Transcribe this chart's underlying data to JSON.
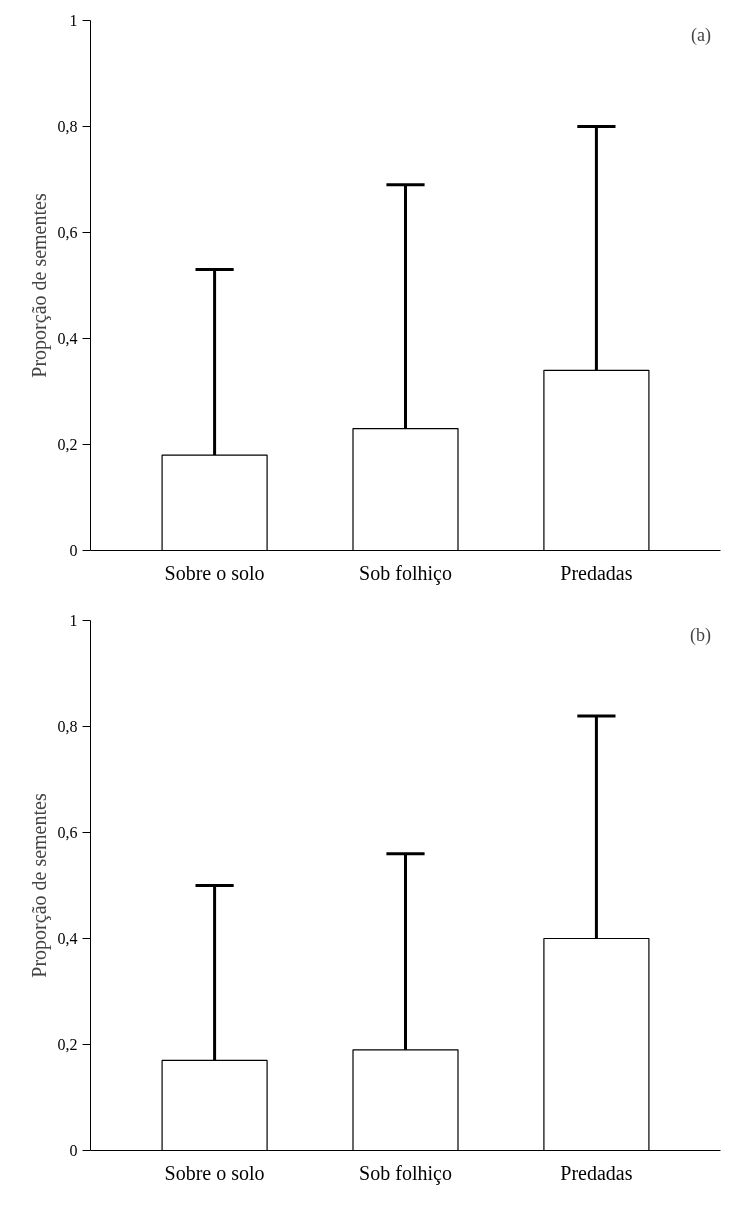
{
  "chart_data": [
    {
      "type": "bar",
      "ylabel": "Proporção de sementes",
      "categories": [
        "Sobre o solo",
        "Sob folhiço",
        "Predadas"
      ],
      "values": [
        0.18,
        0.23,
        0.34
      ],
      "colors": [
        "#ffffff",
        "#ffffff",
        "#ffffff"
      ],
      "errors": [
        [
          0.18,
          0.53
        ],
        [
          0.23,
          0.69
        ],
        [
          0.34,
          0.8
        ]
      ],
      "ylim": [
        0,
        1
      ],
      "yticks": [
        0,
        {
          "value": 0.2,
          "label": "0,2"
        },
        {
          "value": 0.4,
          "label": "0,4"
        },
        {
          "value": 0.6,
          "label": "0,6"
        },
        {
          "value": 0.8,
          "label": "0,8"
        },
        1
      ],
      "annotations": [
        "(a)"
      ]
    },
    {
      "type": "bar",
      "ylabel": "Proporção de sementes",
      "categories": [
        "Sobre o solo",
        "Sob folhiço",
        "Predadas"
      ],
      "values": [
        0.17,
        0.19,
        0.4
      ],
      "colors": [
        "#ffffff",
        "#ffffff",
        "#ffffff"
      ],
      "errors": [
        [
          0.17,
          0.5
        ],
        [
          0.19,
          0.56
        ],
        [
          0.4,
          0.82
        ]
      ],
      "ylim": [
        0,
        1
      ],
      "yticks": [
        0,
        {
          "value": 0.2,
          "label": "0,2"
        },
        {
          "value": 0.4,
          "label": "0,4"
        },
        {
          "value": 0.6,
          "label": "0,6"
        },
        {
          "value": 0.8,
          "label": "0,8"
        },
        1
      ],
      "annotations": [
        "(b)"
      ]
    }
  ]
}
